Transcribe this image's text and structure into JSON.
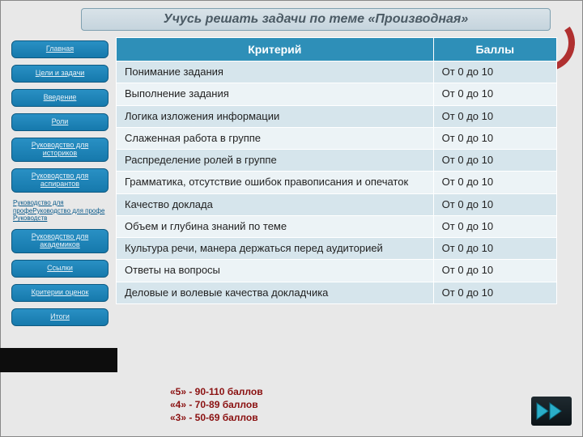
{
  "header": {
    "title": "Учусь решать задачи по теме «Производная»"
  },
  "sidebar": {
    "items": [
      {
        "label": "Главная",
        "tall": false
      },
      {
        "label": "Цели и задачи",
        "tall": false
      },
      {
        "label": "Введение",
        "tall": false
      },
      {
        "label": "Роли",
        "tall": false
      },
      {
        "label": "Руководство для историков",
        "tall": true
      },
      {
        "label": "Руководство для аспирантов",
        "tall": true
      }
    ],
    "overflow_text": "Руководство для профеРуководство для профе Руководств",
    "items2": [
      {
        "label": "Руководство для академиков",
        "tall": true
      },
      {
        "label": "Ссылки",
        "tall": false
      },
      {
        "label": "Критерии оценок",
        "tall": false
      },
      {
        "label": "Итоги",
        "tall": false
      }
    ]
  },
  "table": {
    "header": {
      "criterion": "Критерий",
      "points": "Баллы"
    },
    "rows": [
      {
        "c": "Понимание задания",
        "p": "От 0 до 10"
      },
      {
        "c": "Выполнение задания",
        "p": "От 0 до 10"
      },
      {
        "c": "Логика изложения информации",
        "p": "От 0 до 10"
      },
      {
        "c": "Слаженная работа в группе",
        "p": "От 0 до 10"
      },
      {
        "c": "Распределение ролей в группе",
        "p": "От 0 до 10"
      },
      {
        "c": "Грамматика, отсутствие ошибок правописания и опечаток",
        "p": "От 0 до 10"
      },
      {
        "c": "Качество доклада",
        "p": "От 0 до 10"
      },
      {
        "c": "Объем и глубина знаний по теме",
        "p": "От 0 до 10"
      },
      {
        "c": "Культура речи, манера держаться перед аудиторией",
        "p": "От 0 до 10"
      },
      {
        "c": "Ответы на вопросы",
        "p": "От 0 до 10"
      },
      {
        "c": "Деловые и волевые качества докладчика",
        "p": "От 0 до 10"
      }
    ]
  },
  "grades": {
    "line1": "«5» - 90-110 баллов",
    "line2": "«4» - 70-89 баллов",
    "line3": "«3» - 50-69 баллов"
  },
  "colors": {
    "accent": "#2e8fb8",
    "grade_text": "#8a1010",
    "arrow_fill": "#2aaec9"
  }
}
